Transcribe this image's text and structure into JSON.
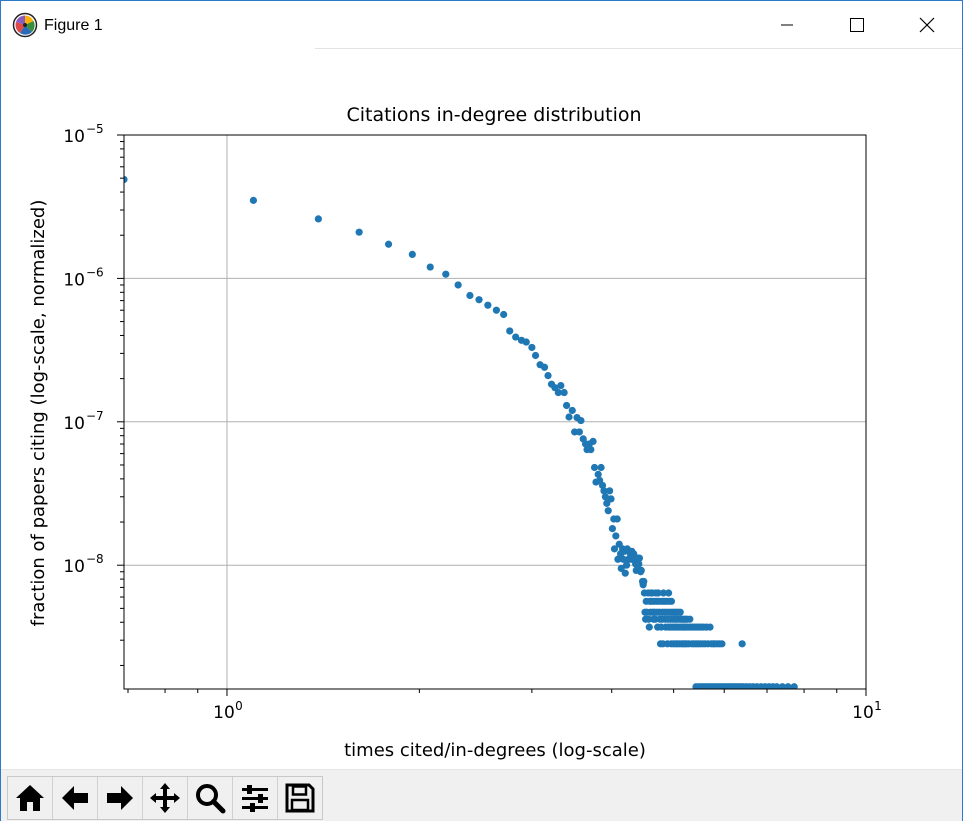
{
  "window": {
    "title": "Figure 1",
    "controls": {
      "minimize": "minimize",
      "maximize": "maximize",
      "close": "close"
    }
  },
  "toolbar": {
    "tools": [
      {
        "name": "home-icon"
      },
      {
        "name": "back-icon"
      },
      {
        "name": "forward-icon"
      },
      {
        "name": "pan-icon"
      },
      {
        "name": "zoom-icon"
      },
      {
        "name": "configure-subplots-icon"
      },
      {
        "name": "save-icon"
      }
    ]
  },
  "chart_data": {
    "type": "scatter",
    "title": "Citations in-degree distribution",
    "xlabel": "times cited/in-degrees (log-scale)",
    "ylabel": "fraction of papers citing (log-scale, normalized)",
    "xscale": "log",
    "yscale": "log",
    "xlim": [
      0.69,
      10
    ],
    "ylim": [
      1.37e-09,
      1e-05
    ],
    "x_ticks": [
      {
        "base": "10",
        "exp": "0"
      },
      {
        "base": "10",
        "exp": "1"
      }
    ],
    "y_ticks": [
      {
        "base": "10",
        "exp": "−5"
      },
      {
        "base": "10",
        "exp": "−6"
      },
      {
        "base": "10",
        "exp": "−7"
      },
      {
        "base": "10",
        "exp": "−8"
      }
    ],
    "grid": true,
    "marker_color": "#1f77b4",
    "points": [
      [
        0.69,
        4.9e-06
      ],
      [
        1.1,
        3.5e-06
      ],
      [
        1.39,
        2.6e-06
      ],
      [
        1.61,
        2.1e-06
      ],
      [
        1.79,
        1.73e-06
      ],
      [
        1.95,
        1.47e-06
      ],
      [
        2.08,
        1.2e-06
      ],
      [
        2.2,
        1.07e-06
      ],
      [
        2.3,
        9e-07
      ],
      [
        2.4,
        7.6e-07
      ],
      [
        2.48,
        7.1e-07
      ],
      [
        2.56,
        6.5e-07
      ],
      [
        2.64,
        6e-07
      ],
      [
        2.71,
        5.6e-07
      ],
      [
        2.77,
        4.3e-07
      ],
      [
        2.83,
        3.9e-07
      ],
      [
        2.89,
        3.7e-07
      ],
      [
        2.94,
        3.6e-07
      ],
      [
        3.0,
        3.3e-07
      ],
      [
        3.04,
        2.9e-07
      ],
      [
        3.09,
        2.5e-07
      ],
      [
        3.14,
        2.4e-07
      ],
      [
        3.18,
        2.1e-07
      ],
      [
        3.22,
        1.83e-07
      ],
      [
        3.26,
        1.73e-07
      ],
      [
        3.3,
        1.6e-07
      ],
      [
        3.33,
        1.79e-07
      ],
      [
        3.37,
        1.6e-07
      ],
      [
        3.4,
        1.3e-07
      ],
      [
        3.43,
        1.08e-07
      ],
      [
        3.47,
        1.2e-07
      ],
      [
        3.5,
        8.5e-08
      ],
      [
        3.53,
        1.07e-07
      ],
      [
        3.56,
        8.5e-08
      ],
      [
        3.58,
        1.02e-07
      ],
      [
        3.61,
        7.6e-08
      ],
      [
        3.64,
        7e-08
      ],
      [
        3.66,
        6.4e-08
      ],
      [
        3.69,
        7e-08
      ],
      [
        3.71,
        6.4e-08
      ],
      [
        3.74,
        7.3e-08
      ],
      [
        3.76,
        4.8e-08
      ],
      [
        3.78,
        3.8e-08
      ],
      [
        3.81,
        4.3e-08
      ],
      [
        3.83,
        3.9e-08
      ],
      [
        3.85,
        4.8e-08
      ],
      [
        3.87,
        3.6e-08
      ],
      [
        3.89,
        3.3e-08
      ],
      [
        3.91,
        3e-08
      ],
      [
        3.93,
        2.7e-08
      ],
      [
        3.95,
        2.4e-08
      ],
      [
        3.97,
        3.3e-08
      ],
      [
        3.99,
        2.9e-08
      ],
      [
        4.01,
        1.8e-08
      ],
      [
        4.03,
        2.1e-08
      ],
      [
        4.04,
        1.3e-08
      ],
      [
        4.06,
        1.6e-08
      ],
      [
        4.08,
        2.1e-08
      ],
      [
        4.09,
        1.1e-08
      ],
      [
        4.11,
        1.4e-08
      ],
      [
        4.13,
        1.2e-08
      ],
      [
        4.14,
        9.5e-09
      ],
      [
        4.16,
        1.3e-08
      ],
      [
        4.17,
        1.1e-08
      ],
      [
        4.19,
        1.25e-08
      ],
      [
        4.2,
        8.8e-09
      ],
      [
        4.22,
        1e-08
      ],
      [
        4.23,
        1.3e-08
      ],
      [
        4.25,
        1.1e-08
      ],
      [
        4.26,
        1.25e-08
      ],
      [
        4.28,
        1.2e-08
      ],
      [
        4.29,
        1.1e-08
      ],
      [
        4.3,
        1.25e-08
      ],
      [
        4.32,
        1.1e-08
      ],
      [
        4.33,
        1.2e-08
      ],
      [
        4.34,
        1.1e-08
      ],
      [
        4.36,
        1.02e-08
      ],
      [
        4.37,
        9.2e-09
      ],
      [
        4.38,
        1.02e-08
      ],
      [
        4.39,
        1.12e-08
      ],
      [
        4.41,
        1.02e-08
      ],
      [
        4.42,
        1.12e-08
      ],
      [
        4.43,
        9.2e-09
      ],
      [
        4.44,
        9e-09
      ],
      [
        4.45,
        9.2e-09
      ],
      [
        4.47,
        7.7e-09
      ],
      [
        4.48,
        7.3e-09
      ],
      [
        4.49,
        7.7e-09
      ],
      [
        4.5,
        6.4e-09
      ],
      [
        4.51,
        4.7e-09
      ],
      [
        4.52,
        4.2e-09
      ],
      [
        4.53,
        5.6e-09
      ],
      [
        4.54,
        4.7e-09
      ],
      [
        4.56,
        6.4e-09
      ],
      [
        4.57,
        4.2e-09
      ],
      [
        4.58,
        3.7e-09
      ],
      [
        4.59,
        5.6e-09
      ],
      [
        4.6,
        4.7e-09
      ],
      [
        4.61,
        6.4e-09
      ],
      [
        4.62,
        5.6e-09
      ],
      [
        4.63,
        6.4e-09
      ],
      [
        4.64,
        4.7e-09
      ],
      [
        4.65,
        4.2e-09
      ],
      [
        4.66,
        5.6e-09
      ],
      [
        4.67,
        4.7e-09
      ],
      [
        4.68,
        4.2e-09
      ],
      [
        4.69,
        6.4e-09
      ],
      [
        4.7,
        5.6e-09
      ],
      [
        4.71,
        4.7e-09
      ],
      [
        4.72,
        3.7e-09
      ],
      [
        4.73,
        6.4e-09
      ],
      [
        4.74,
        5.6e-09
      ],
      [
        4.75,
        4.7e-09
      ],
      [
        4.76,
        4.2e-09
      ],
      [
        4.77,
        2.83e-09
      ],
      [
        4.78,
        3.7e-09
      ],
      [
        4.79,
        5.6e-09
      ],
      [
        4.8,
        4.7e-09
      ],
      [
        4.8,
        4.2e-09
      ],
      [
        4.81,
        2.83e-09
      ],
      [
        4.82,
        6.4e-09
      ],
      [
        4.83,
        5.6e-09
      ],
      [
        4.84,
        4.7e-09
      ],
      [
        4.85,
        4.2e-09
      ],
      [
        4.86,
        3.7e-09
      ],
      [
        4.87,
        5.6e-09
      ],
      [
        4.88,
        4.7e-09
      ],
      [
        4.89,
        2.83e-09
      ],
      [
        4.9,
        4.2e-09
      ],
      [
        4.91,
        3.7e-09
      ],
      [
        4.91,
        6.4e-09
      ],
      [
        4.92,
        5.6e-09
      ],
      [
        4.93,
        4.7e-09
      ],
      [
        4.94,
        4.2e-09
      ],
      [
        4.95,
        3.7e-09
      ],
      [
        4.96,
        2.83e-09
      ],
      [
        4.96,
        5.6e-09
      ],
      [
        4.97,
        4.7e-09
      ],
      [
        4.98,
        4.2e-09
      ],
      [
        4.99,
        3.7e-09
      ],
      [
        5.0,
        2.83e-09
      ],
      [
        5.01,
        4.7e-09
      ],
      [
        5.02,
        4.2e-09
      ],
      [
        5.03,
        3.7e-09
      ],
      [
        5.04,
        2.83e-09
      ],
      [
        5.04,
        4.7e-09
      ],
      [
        5.05,
        4.2e-09
      ],
      [
        5.06,
        3.7e-09
      ],
      [
        5.07,
        2.83e-09
      ],
      [
        5.08,
        4.7e-09
      ],
      [
        5.09,
        4.2e-09
      ],
      [
        5.1,
        3.7e-09
      ],
      [
        5.11,
        2.83e-09
      ],
      [
        5.12,
        4.7e-09
      ],
      [
        5.13,
        4.2e-09
      ],
      [
        5.14,
        3.7e-09
      ],
      [
        5.15,
        2.83e-09
      ],
      [
        5.16,
        4.2e-09
      ],
      [
        5.17,
        3.7e-09
      ],
      [
        5.18,
        2.83e-09
      ],
      [
        5.19,
        4.2e-09
      ],
      [
        5.2,
        3.7e-09
      ],
      [
        5.21,
        2.83e-09
      ],
      [
        5.22,
        4.2e-09
      ],
      [
        5.23,
        3.7e-09
      ],
      [
        5.24,
        2.83e-09
      ],
      [
        5.25,
        4.2e-09
      ],
      [
        5.27,
        3.7e-09
      ],
      [
        5.28,
        2.83e-09
      ],
      [
        5.3,
        4.2e-09
      ],
      [
        5.32,
        3.7e-09
      ],
      [
        5.34,
        2.83e-09
      ],
      [
        5.36,
        3.7e-09
      ],
      [
        5.38,
        2.83e-09
      ],
      [
        5.4,
        3.7e-09
      ],
      [
        5.42,
        2.83e-09
      ],
      [
        5.44,
        3.7e-09
      ],
      [
        5.46,
        2.83e-09
      ],
      [
        5.48,
        3.7e-09
      ],
      [
        5.5,
        2.83e-09
      ],
      [
        5.52,
        3.7e-09
      ],
      [
        5.55,
        2.83e-09
      ],
      [
        5.57,
        3.7e-09
      ],
      [
        5.6,
        2.83e-09
      ],
      [
        5.63,
        3.7e-09
      ],
      [
        5.66,
        2.83e-09
      ],
      [
        5.7,
        3.7e-09
      ],
      [
        5.73,
        2.83e-09
      ],
      [
        5.77,
        2.83e-09
      ],
      [
        5.8,
        2.83e-09
      ],
      [
        5.85,
        2.83e-09
      ],
      [
        5.9,
        2.83e-09
      ],
      [
        5.95,
        2.83e-09
      ],
      [
        6.4,
        2.83e-09
      ],
      [
        5.42,
        1.42e-09
      ],
      [
        5.48,
        1.42e-09
      ],
      [
        5.53,
        1.42e-09
      ],
      [
        5.58,
        1.42e-09
      ],
      [
        5.63,
        1.42e-09
      ],
      [
        5.68,
        1.42e-09
      ],
      [
        5.73,
        1.42e-09
      ],
      [
        5.78,
        1.42e-09
      ],
      [
        5.83,
        1.42e-09
      ],
      [
        5.88,
        1.42e-09
      ],
      [
        5.93,
        1.42e-09
      ],
      [
        5.98,
        1.42e-09
      ],
      [
        6.03,
        1.42e-09
      ],
      [
        6.08,
        1.42e-09
      ],
      [
        6.13,
        1.42e-09
      ],
      [
        6.18,
        1.42e-09
      ],
      [
        6.23,
        1.42e-09
      ],
      [
        6.28,
        1.42e-09
      ],
      [
        6.33,
        1.42e-09
      ],
      [
        6.38,
        1.42e-09
      ],
      [
        6.43,
        1.42e-09
      ],
      [
        6.5,
        1.42e-09
      ],
      [
        6.58,
        1.42e-09
      ],
      [
        6.66,
        1.42e-09
      ],
      [
        6.75,
        1.42e-09
      ],
      [
        6.85,
        1.42e-09
      ],
      [
        6.95,
        1.42e-09
      ],
      [
        7.05,
        1.42e-09
      ],
      [
        7.15,
        1.42e-09
      ],
      [
        7.25,
        1.42e-09
      ],
      [
        7.4,
        1.42e-09
      ],
      [
        7.55,
        1.42e-09
      ],
      [
        7.72,
        1.42e-09
      ]
    ]
  }
}
